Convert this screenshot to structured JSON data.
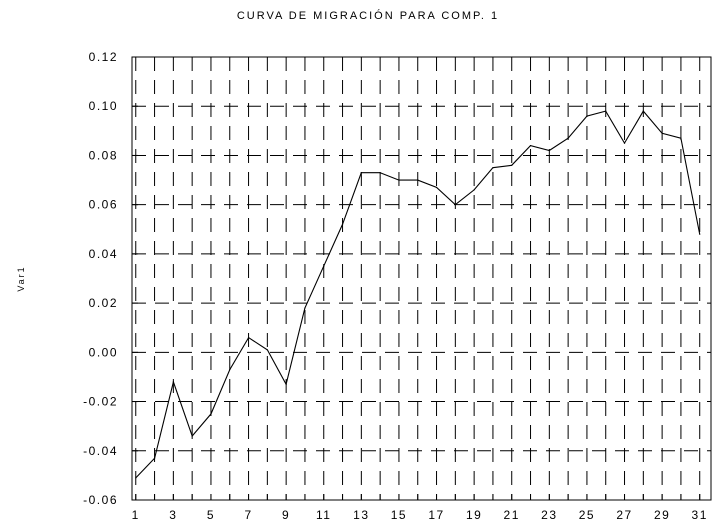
{
  "chart_data": {
    "type": "line",
    "title": "CURVA DE MIGRACIÓN PARA COMP. 1",
    "xlabel": "",
    "ylabel": "Var1",
    "xlim": [
      0.8,
      31.6
    ],
    "ylim": [
      -0.06,
      0.12
    ],
    "grid": true,
    "grid_style": "dashed",
    "x_ticks": [
      1,
      3,
      5,
      7,
      9,
      11,
      13,
      15,
      17,
      19,
      21,
      23,
      25,
      27,
      29,
      31
    ],
    "y_ticks": [
      -0.06,
      -0.04,
      -0.02,
      0.0,
      0.02,
      0.04,
      0.06,
      0.08,
      0.1,
      0.12
    ],
    "y_tick_labels": [
      "-0.06",
      "-0.04",
      "-0.02",
      "0.00",
      "0.02",
      "0.04",
      "0.06",
      "0.08",
      "0.10",
      "0.12"
    ],
    "x_tick_labels": [
      "1",
      "3",
      "5",
      "7",
      "9",
      "11",
      "13",
      "15",
      "17",
      "19",
      "21",
      "23",
      "25",
      "27",
      "29",
      "31"
    ],
    "series": [
      {
        "color": "#000000",
        "x": [
          1,
          2,
          3,
          4,
          5,
          6,
          7,
          8,
          9,
          10,
          11,
          12,
          13,
          14,
          15,
          16,
          17,
          18,
          19,
          20,
          21,
          22,
          23,
          24,
          25,
          26,
          27,
          28,
          29,
          30,
          31
        ],
        "values": [
          -0.051,
          -0.043,
          -0.012,
          -0.034,
          -0.025,
          -0.007,
          0.006,
          0.001,
          -0.013,
          0.018,
          0.035,
          0.052,
          0.073,
          0.073,
          0.07,
          0.07,
          0.067,
          0.06,
          0.066,
          0.075,
          0.076,
          0.084,
          0.082,
          0.087,
          0.096,
          0.098,
          0.085,
          0.098,
          0.089,
          0.087,
          0.048
        ]
      }
    ]
  }
}
